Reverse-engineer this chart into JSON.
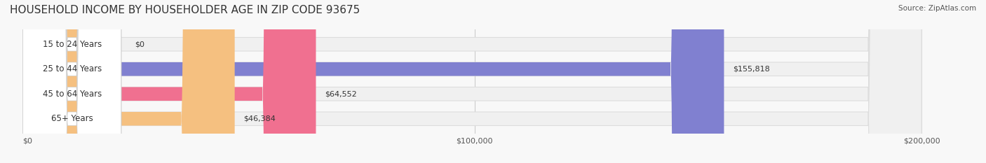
{
  "title": "HOUSEHOLD INCOME BY HOUSEHOLDER AGE IN ZIP CODE 93675",
  "source": "Source: ZipAtlas.com",
  "categories": [
    "15 to 24 Years",
    "25 to 44 Years",
    "45 to 64 Years",
    "65+ Years"
  ],
  "values": [
    0,
    155818,
    64552,
    46384
  ],
  "value_labels": [
    "$0",
    "$155,818",
    "$64,552",
    "$46,384"
  ],
  "bar_colors": [
    "#5ecbcb",
    "#8080d0",
    "#f07090",
    "#f5c080"
  ],
  "bar_bg_color": "#f0f0f0",
  "label_bg_color": "#ffffff",
  "xlim": [
    0,
    200000
  ],
  "xticks": [
    0,
    100000,
    200000
  ],
  "xtick_labels": [
    "$0",
    "$100,000",
    "$200,000"
  ],
  "title_fontsize": 11,
  "bar_height": 0.55,
  "fig_width": 14.06,
  "fig_height": 2.33,
  "dpi": 100
}
